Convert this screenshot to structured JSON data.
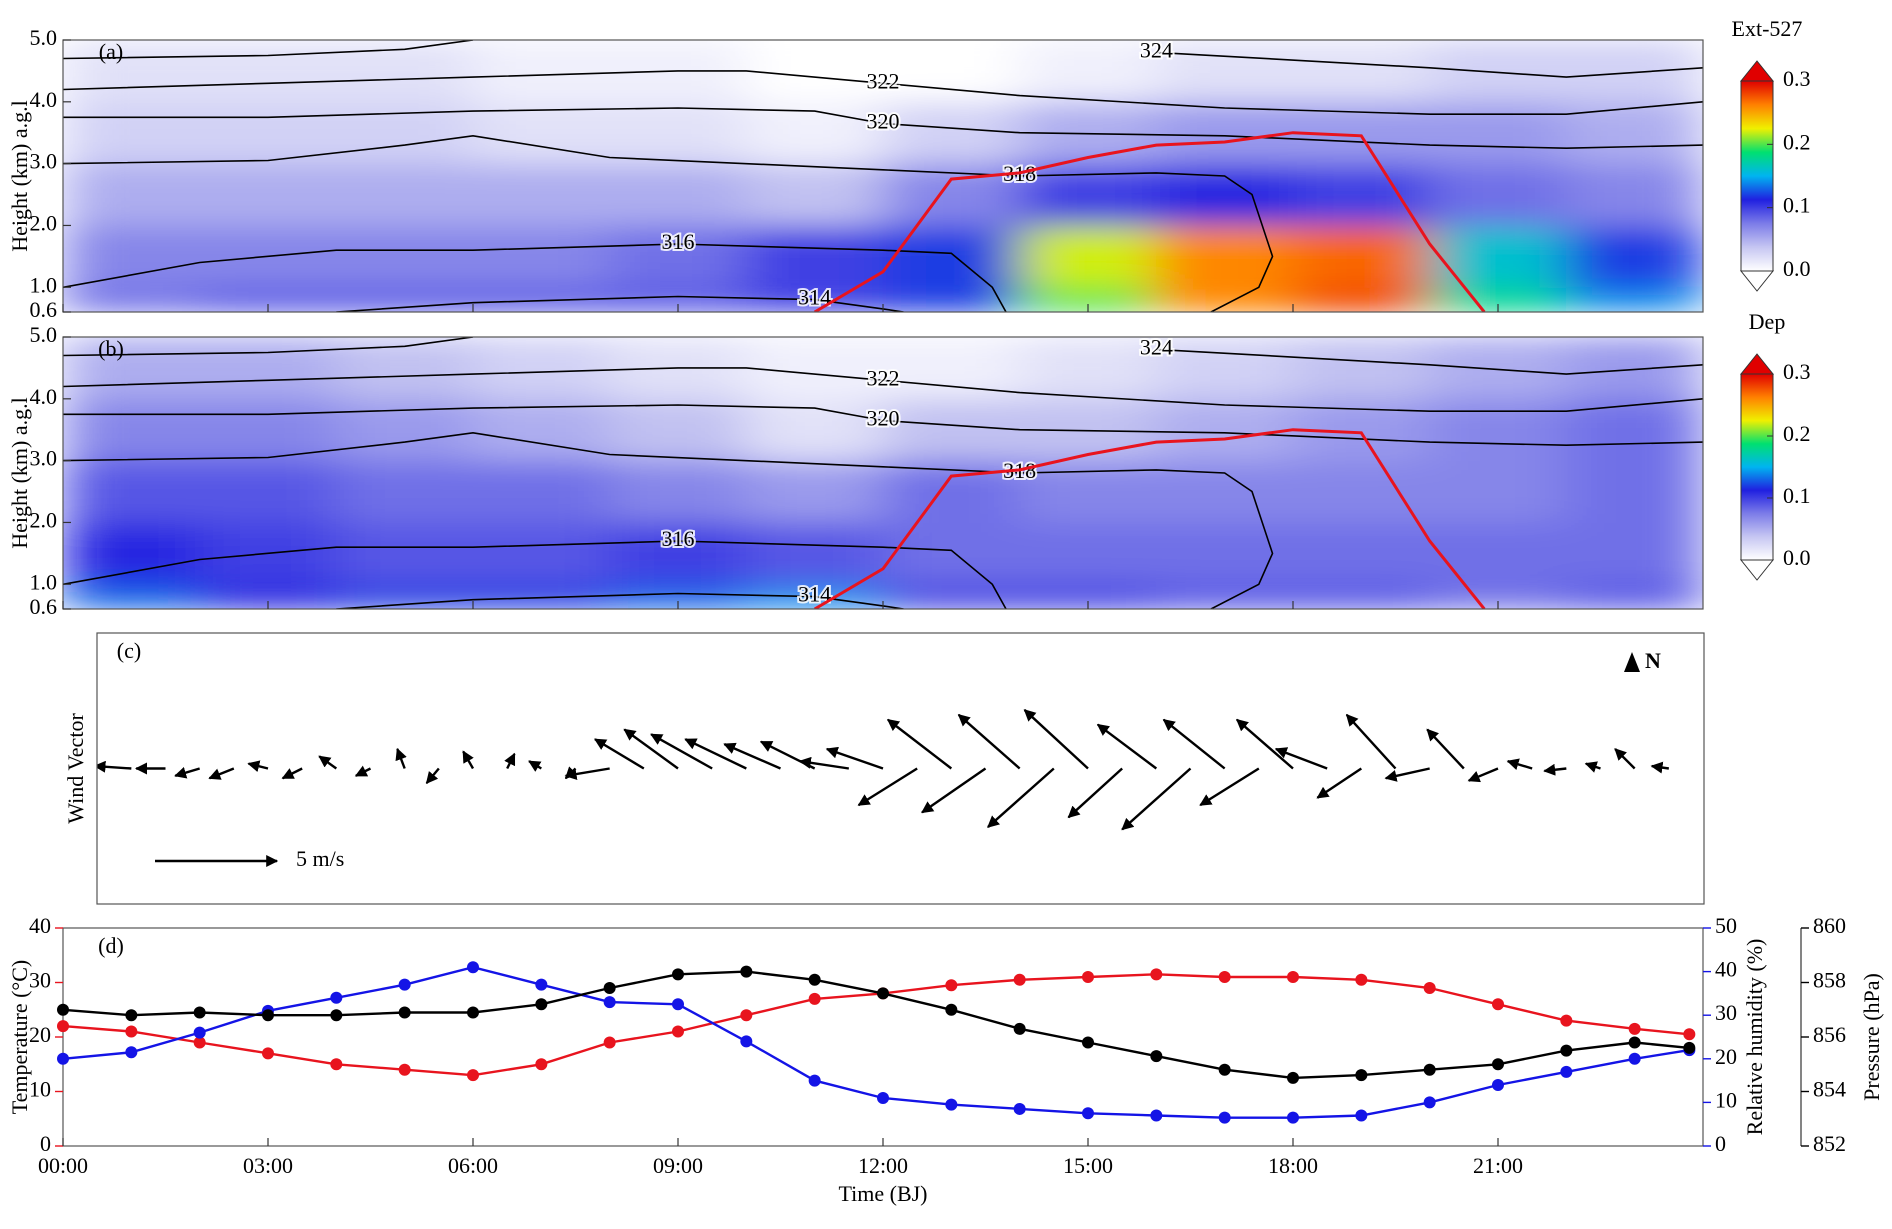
{
  "chart_data": [
    {
      "type": "heatmap",
      "panel_label": "(a)",
      "ylabel": "Height (km) a.g.l",
      "colorbar_title": "Ext-527",
      "xlim": [
        0,
        24
      ],
      "ylim": [
        0.6,
        5.0
      ],
      "yticks": [
        {
          "value": 0.6,
          "label": "0.6"
        },
        {
          "value": 1,
          "label": "1.0"
        },
        {
          "value": 2,
          "label": "2.0"
        },
        {
          "value": 3,
          "label": "3.0"
        },
        {
          "value": 4,
          "label": "4.0"
        },
        {
          "value": 5,
          "label": "5.0"
        }
      ],
      "clim": [
        0,
        0.3
      ],
      "cticks": [
        {
          "value": 0,
          "label": "0.0"
        },
        0.1,
        0.2,
        0.3
      ],
      "colorscale": [
        "#ffffff",
        "#c6c6f2",
        "#7c7ce8",
        "#2020e0",
        "#00b4f0",
        "#00e070",
        "#f0f000",
        "#ff8000",
        "#e00000"
      ],
      "x_edges": [
        0,
        2,
        4,
        6,
        8,
        10,
        12,
        14,
        16,
        18,
        20,
        22,
        24
      ],
      "y_edges": [
        0.6,
        1,
        2,
        3,
        4,
        5
      ],
      "z": [
        [
          0.08,
          0.09,
          0.09,
          0.09,
          0.09,
          0.1,
          0.12,
          0.2,
          0.26,
          0.28,
          0.18,
          0.14
        ],
        [
          0.07,
          0.07,
          0.07,
          0.07,
          0.08,
          0.1,
          0.12,
          0.22,
          0.26,
          0.27,
          0.16,
          0.12
        ],
        [
          0.05,
          0.05,
          0.05,
          0.05,
          0.05,
          0.04,
          0.07,
          0.1,
          0.11,
          0.1,
          0.08,
          0.07
        ],
        [
          0.03,
          0.03,
          0.03,
          0.02,
          0.02,
          0.01,
          0.03,
          0.05,
          0.06,
          0.06,
          0.06,
          0.05
        ],
        [
          0.02,
          0.02,
          0.02,
          0.01,
          0.01,
          0.0,
          0.0,
          0.01,
          0.02,
          0.02,
          0.03,
          0.03
        ]
      ],
      "contours": [
        {
          "level": 324,
          "x": [
            0,
            3,
            5,
            6,
            12.5,
            16,
            20,
            22,
            24
          ],
          "values": [
            4.7,
            4.75,
            4.85,
            5.0,
            null,
            4.8,
            4.55,
            4.4,
            4.55
          ]
        },
        {
          "level": 322,
          "x": [
            0,
            3,
            6,
            9,
            10,
            12,
            14,
            17,
            20,
            22,
            24
          ],
          "values": [
            4.2,
            4.3,
            4.4,
            4.5,
            4.5,
            4.3,
            4.1,
            3.9,
            3.8,
            3.8,
            4.0
          ]
        },
        {
          "level": 320,
          "x": [
            0,
            3,
            6,
            9,
            11,
            12,
            14,
            17,
            20,
            22,
            24
          ],
          "values": [
            3.75,
            3.75,
            3.85,
            3.9,
            3.85,
            3.65,
            3.5,
            3.45,
            3.3,
            3.25,
            3.3
          ]
        },
        {
          "level": 318,
          "x": [
            0,
            3,
            5,
            6,
            8,
            12,
            14,
            16,
            17,
            17.4,
            17.7,
            17.5,
            16.8
          ],
          "values": [
            3.0,
            3.05,
            3.3,
            3.45,
            3.1,
            2.9,
            2.8,
            2.85,
            2.8,
            2.5,
            1.5,
            1.0,
            0.6
          ]
        },
        {
          "level": 316,
          "x": [
            0,
            2,
            4,
            6,
            9,
            12,
            13,
            13.6,
            13.8
          ],
          "values": [
            1.0,
            1.4,
            1.6,
            1.6,
            1.7,
            1.6,
            1.55,
            1.0,
            0.6
          ]
        },
        {
          "level": 314,
          "x": [
            4,
            6,
            9,
            11,
            12,
            12.3
          ],
          "values": [
            0.6,
            0.75,
            0.85,
            0.8,
            0.65,
            0.6
          ]
        }
      ],
      "boundary": {
        "color": "#e8141e",
        "x": [
          11,
          12,
          13,
          14,
          15,
          16,
          17,
          18,
          19,
          20,
          20.8
        ],
        "values": [
          0.6,
          1.25,
          2.75,
          2.85,
          3.1,
          3.3,
          3.35,
          3.5,
          3.45,
          1.7,
          0.6
        ]
      }
    },
    {
      "type": "heatmap",
      "panel_label": "(b)",
      "ylabel": "Height (km) a.g.l",
      "colorbar_title": "Dep",
      "xlim": [
        0,
        24
      ],
      "ylim": [
        0.6,
        5.0
      ],
      "yticks": [
        {
          "value": 0.6,
          "label": "0.6"
        },
        {
          "value": 1,
          "label": "1.0"
        },
        {
          "value": 2,
          "label": "2.0"
        },
        {
          "value": 3,
          "label": "3.0"
        },
        {
          "value": 4,
          "label": "4.0"
        },
        {
          "value": 5,
          "label": "5.0"
        }
      ],
      "clim": [
        0,
        0.3
      ],
      "cticks": [
        {
          "value": 0,
          "label": "0.0"
        },
        0.1,
        0.2,
        0.3
      ],
      "colorscale": [
        "#ffffff",
        "#c6c6f2",
        "#7c7ce8",
        "#2020e0",
        "#00b4f0",
        "#00e070",
        "#f0f000",
        "#ff8000",
        "#e00000"
      ],
      "x_edges": [
        0,
        2,
        4,
        6,
        8,
        10,
        12,
        14,
        16,
        18,
        20,
        22,
        24
      ],
      "y_edges": [
        0.6,
        1,
        2,
        3,
        4,
        5
      ],
      "z": [
        [
          0.13,
          0.11,
          0.12,
          0.12,
          0.13,
          0.14,
          0.1,
          0.1,
          0.09,
          0.09,
          0.08,
          0.09
        ],
        [
          0.11,
          0.1,
          0.09,
          0.09,
          0.1,
          0.09,
          0.08,
          0.08,
          0.08,
          0.08,
          0.08,
          0.08
        ],
        [
          0.09,
          0.09,
          0.08,
          0.08,
          0.07,
          0.06,
          0.08,
          0.07,
          0.07,
          0.07,
          0.07,
          0.08
        ],
        [
          0.07,
          0.07,
          0.06,
          0.05,
          0.04,
          0.02,
          0.04,
          0.04,
          0.05,
          0.06,
          0.07,
          0.08
        ],
        [
          0.05,
          0.05,
          0.04,
          0.03,
          0.02,
          0.01,
          0.01,
          0.02,
          0.03,
          0.04,
          0.05,
          0.06
        ]
      ],
      "contours": [
        {
          "level": 324,
          "x": [
            0,
            3,
            5,
            6,
            12.5,
            16,
            20,
            22,
            24
          ],
          "values": [
            4.7,
            4.75,
            4.85,
            5.0,
            null,
            4.8,
            4.55,
            4.4,
            4.55
          ]
        },
        {
          "level": 322,
          "x": [
            0,
            3,
            6,
            9,
            10,
            12,
            14,
            17,
            20,
            22,
            24
          ],
          "values": [
            4.2,
            4.3,
            4.4,
            4.5,
            4.5,
            4.3,
            4.1,
            3.9,
            3.8,
            3.8,
            4.0
          ]
        },
        {
          "level": 320,
          "x": [
            0,
            3,
            6,
            9,
            11,
            12,
            14,
            17,
            20,
            22,
            24
          ],
          "values": [
            3.75,
            3.75,
            3.85,
            3.9,
            3.85,
            3.65,
            3.5,
            3.45,
            3.3,
            3.25,
            3.3
          ]
        },
        {
          "level": 318,
          "x": [
            0,
            3,
            5,
            6,
            8,
            12,
            14,
            16,
            17,
            17.4,
            17.7,
            17.5,
            16.8
          ],
          "values": [
            3.0,
            3.05,
            3.3,
            3.45,
            3.1,
            2.9,
            2.8,
            2.85,
            2.8,
            2.5,
            1.5,
            1.0,
            0.6
          ]
        },
        {
          "level": 316,
          "x": [
            0,
            2,
            4,
            6,
            9,
            12,
            13,
            13.6,
            13.8
          ],
          "values": [
            1.0,
            1.4,
            1.6,
            1.6,
            1.7,
            1.6,
            1.55,
            1.0,
            0.6
          ]
        },
        {
          "level": 314,
          "x": [
            4,
            6,
            9,
            11,
            12,
            12.3
          ],
          "values": [
            0.6,
            0.75,
            0.85,
            0.8,
            0.65,
            0.6
          ]
        }
      ],
      "boundary": {
        "color": "#e8141e",
        "x": [
          11,
          12,
          13,
          14,
          15,
          16,
          17,
          18,
          19,
          20,
          20.8
        ],
        "values": [
          0.6,
          1.25,
          2.75,
          2.85,
          3.1,
          3.3,
          3.35,
          3.5,
          3.45,
          1.7,
          0.6
        ]
      }
    },
    {
      "type": "quiver",
      "panel_label": "(c)",
      "ylabel": "Wind Vector",
      "north_label": "N",
      "xlim": [
        0,
        24
      ],
      "color": "#000000",
      "reference": {
        "value": 5,
        "label": "5 m/s"
      },
      "x": [
        0,
        0.5,
        1,
        1.5,
        2,
        2.5,
        3,
        3.5,
        4,
        4.5,
        5,
        5.5,
        6,
        6.5,
        7,
        7.5,
        8,
        8.5,
        9,
        9.5,
        10,
        10.5,
        11,
        11.5,
        12,
        12.5,
        13,
        13.5,
        14,
        14.5,
        15,
        15.5,
        16,
        16.5,
        17,
        17.5,
        18,
        18.5,
        19,
        19.5,
        20,
        20.5,
        21,
        21.5,
        22,
        22.5,
        23,
        23.5
      ],
      "u": [
        -2,
        -1.5,
        -1.5,
        -1.2,
        -1,
        -1,
        -0.8,
        -0.8,
        -0.7,
        -0.6,
        -0.3,
        -0.5,
        -0.4,
        0.3,
        -0.5,
        -0.4,
        -1.8,
        -2,
        -2.2,
        -2.5,
        -2.5,
        -2.3,
        -2.2,
        -2.0,
        -2.3,
        -2.4,
        -2.6,
        -2.6,
        -2.5,
        -2.7,
        -2.6,
        -2.2,
        -2.4,
        -2.8,
        -2.5,
        -2.4,
        -2.3,
        -2.1,
        -1.8,
        -2.0,
        -1.8,
        -1.5,
        -1.2,
        -1.0,
        -0.9,
        -0.6,
        -0.8,
        -0.7
      ],
      "v": [
        0.6,
        0.3,
        0.1,
        0,
        -0.3,
        -0.4,
        0.2,
        -0.4,
        0.5,
        -0.3,
        0.8,
        -0.6,
        0.7,
        0.6,
        0.3,
        -0.4,
        -0.3,
        1.2,
        1.6,
        1.4,
        1.2,
        1.0,
        1.1,
        0.3,
        0.8,
        -1.5,
        2.0,
        -1.8,
        2.2,
        -2.4,
        2.4,
        -2.0,
        1.8,
        -2.5,
        2.0,
        -1.5,
        2.0,
        0.8,
        -1.2,
        2.2,
        -0.4,
        1.6,
        -0.5,
        0.3,
        -0.1,
        0.2,
        0.8,
        0.1
      ]
    },
    {
      "type": "line",
      "panel_label": "(d)",
      "xlabel": "Time (BJ)",
      "ylabel": "Temperature (°C)",
      "y2label": "Relative humidity (%)",
      "y3label": "Pressure (hPa)",
      "xlim": [
        0,
        24
      ],
      "xticks": [
        {
          "value": 0,
          "label": "00:00"
        },
        {
          "value": 3,
          "label": "03:00"
        },
        {
          "value": 6,
          "label": "06:00"
        },
        {
          "value": 9,
          "label": "09:00"
        },
        {
          "value": 12,
          "label": "12:00"
        },
        {
          "value": 15,
          "label": "15:00"
        },
        {
          "value": 18,
          "label": "18:00"
        },
        {
          "value": 21,
          "label": "21:00"
        }
      ],
      "ylim": [
        0,
        40
      ],
      "yticks": [
        0,
        10,
        20,
        30,
        40
      ],
      "y2lim": [
        0,
        50
      ],
      "y2ticks": [
        0,
        10,
        20,
        30,
        40,
        50
      ],
      "y3lim": [
        852,
        860
      ],
      "y3ticks": [
        852,
        854,
        856,
        858,
        860
      ],
      "x": [
        0,
        1,
        2,
        3,
        4,
        5,
        6,
        7,
        8,
        9,
        10,
        11,
        12,
        13,
        14,
        15,
        16,
        17,
        18,
        19,
        20,
        21,
        22,
        23,
        23.8
      ],
      "series": [
        {
          "color": "#e8141e",
          "axis": "y",
          "values": [
            22,
            21,
            19,
            17,
            15,
            14,
            13,
            15,
            19,
            21,
            24,
            27,
            28,
            29.5,
            30.5,
            31,
            31.5,
            31,
            31,
            30.5,
            29,
            26,
            23,
            21.5,
            20.5
          ]
        },
        {
          "color": "#1414e6",
          "axis": "y2",
          "values": [
            20,
            21.5,
            26,
            31,
            34,
            37,
            41,
            37,
            33,
            32.5,
            24,
            15,
            11,
            9.5,
            8.5,
            7.5,
            7,
            6.5,
            6.5,
            7,
            10,
            14,
            17,
            20,
            22
          ]
        },
        {
          "color": "#000000",
          "axis": "y3",
          "values": [
            857,
            856.8,
            856.9,
            856.8,
            856.8,
            856.9,
            856.9,
            857.2,
            857.8,
            858.3,
            858.4,
            858.1,
            857.6,
            857.0,
            856.3,
            855.8,
            855.3,
            854.8,
            854.5,
            854.6,
            854.8,
            855.0,
            855.5,
            855.8,
            855.6
          ]
        }
      ]
    }
  ]
}
